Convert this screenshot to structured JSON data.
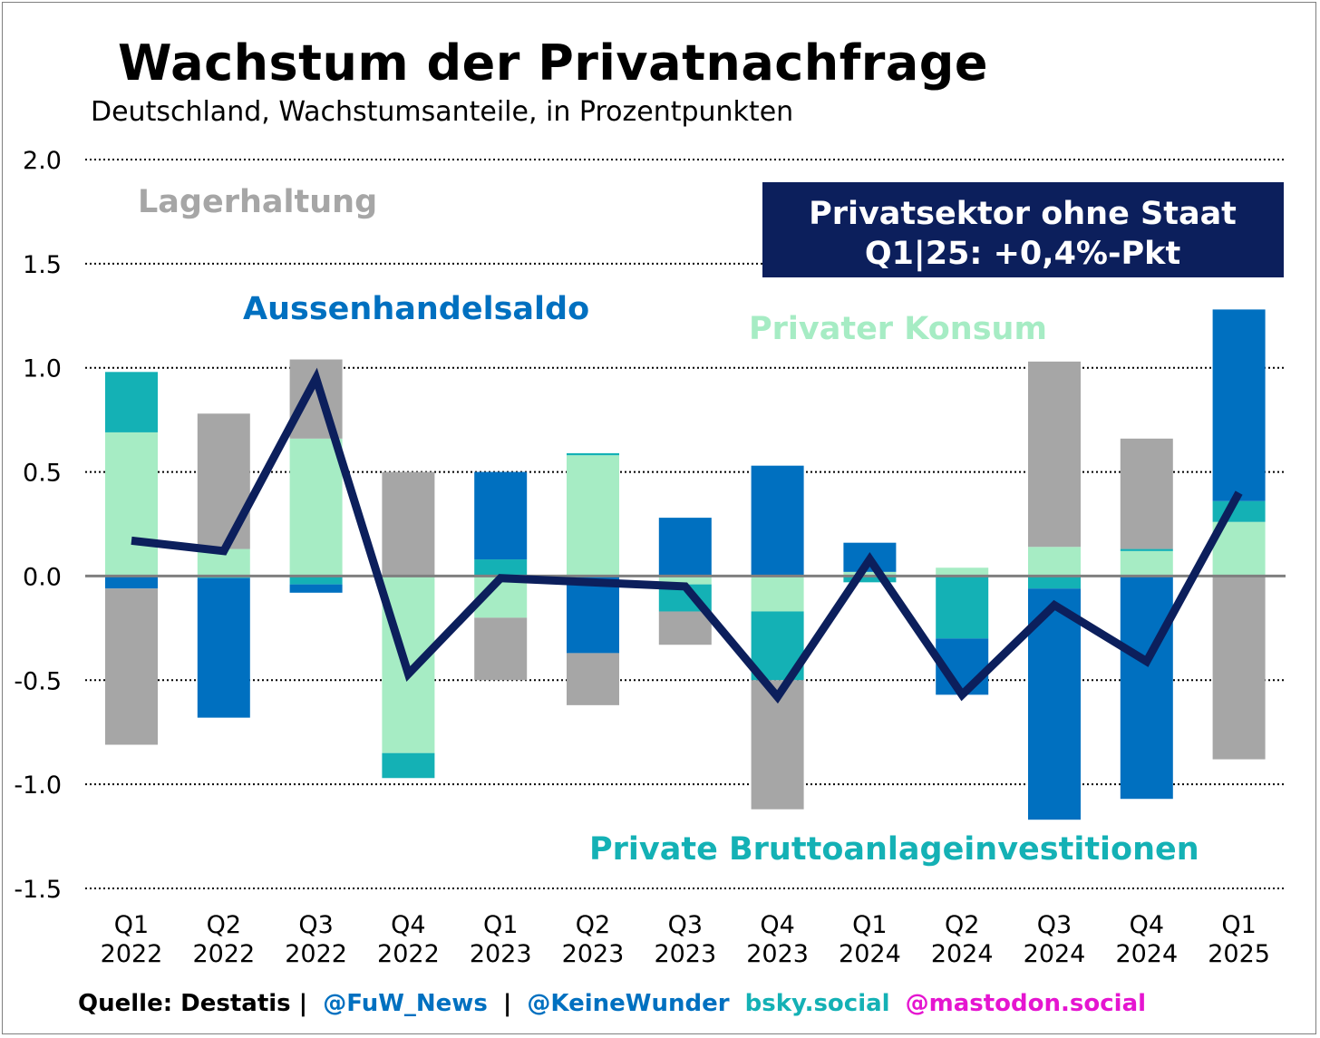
{
  "header": {
    "title": "Wachstum der Privatnachfrage",
    "subtitle": "Deutschland, Wachstumsanteile, in Prozentpunkten"
  },
  "chart_data": {
    "type": "bar",
    "stacked": true,
    "title": "Wachstum der Privatnachfrage",
    "subtitle": "Deutschland, Wachstumsanteile, in Prozentpunkten",
    "ylim": [
      -1.5,
      2.0
    ],
    "yticks": [
      2.0,
      1.5,
      1.0,
      0.5,
      0.0,
      -0.5,
      -1.0,
      -1.5
    ],
    "ytick_labels": [
      "2.0",
      "1.5",
      "1.0",
      "0.5",
      "0.0",
      "-0.5",
      "-1.0",
      "-1.5"
    ],
    "grid": "dotted horizontal",
    "categories": [
      [
        "Q1",
        "2022"
      ],
      [
        "Q2",
        "2022"
      ],
      [
        "Q3",
        "2022"
      ],
      [
        "Q4",
        "2022"
      ],
      [
        "Q1",
        "2023"
      ],
      [
        "Q2",
        "2023"
      ],
      [
        "Q3",
        "2023"
      ],
      [
        "Q4",
        "2023"
      ],
      [
        "Q1",
        "2024"
      ],
      [
        "Q2",
        "2024"
      ],
      [
        "Q3",
        "2024"
      ],
      [
        "Q4",
        "2024"
      ],
      [
        "Q1",
        "2025"
      ]
    ],
    "series": [
      {
        "name": "Privater Konsum",
        "color": "#a6ecc4",
        "values": [
          0.69,
          0.13,
          0.66,
          -0.85,
          -0.2,
          0.58,
          -0.04,
          -0.17,
          0.02,
          0.04,
          0.14,
          0.12,
          0.26
        ]
      },
      {
        "name": "Private Bruttoanlageinvestitionen",
        "color": "#14b1b5",
        "values": [
          0.29,
          -0.01,
          -0.04,
          -0.12,
          0.08,
          0.01,
          -0.13,
          -0.33,
          -0.03,
          -0.3,
          -0.06,
          0.01,
          0.1
        ]
      },
      {
        "name": "Aussenhandelsaldo",
        "color": "#0070c0",
        "values": [
          -0.06,
          -0.67,
          -0.04,
          0.0,
          0.42,
          -0.37,
          0.28,
          0.53,
          0.14,
          -0.27,
          -1.11,
          -1.07,
          0.92
        ]
      },
      {
        "name": "Lagerhaltung",
        "color": "#a6a6a6",
        "values": [
          -0.75,
          0.65,
          0.38,
          0.5,
          -0.3,
          -0.25,
          -0.16,
          -0.62,
          0.0,
          0.0,
          0.89,
          0.53,
          -0.88
        ]
      }
    ],
    "line": {
      "name": "Privatsektor ohne Staat",
      "color": "#0c1f5c",
      "values": [
        0.17,
        0.12,
        0.95,
        -0.47,
        -0.01,
        -0.03,
        -0.05,
        -0.58,
        0.08,
        -0.57,
        -0.14,
        -0.41,
        0.4
      ]
    },
    "annotations": {
      "lagerhaltung": "Lagerhaltung",
      "aussenhandelsaldo": "Aussenhandelsaldo",
      "privater_konsum": "Privater Konsum",
      "bruttoanlage": "Private Bruttoanlageinvestitionen",
      "callout_line1": "Privatsektor ohne Staat",
      "callout_line2": "Q1|25: +0,4%-Pkt"
    }
  },
  "colors": {
    "konsum": "#a6ecc4",
    "investitionen": "#14b1b5",
    "aussenhandel": "#0070c0",
    "lager": "#a6a6a6",
    "line": "#0c1f5c",
    "callout_bg": "#0c1f5c",
    "bsky": "#14b1b5",
    "mastodon": "#e515d0"
  },
  "footer": {
    "source": "Quelle: Destatis |",
    "fuw": "@FuW_News",
    "sep": "|",
    "keinewunder": "@KeineWunder",
    "bsky": "bsky.social",
    "mastodon": "@mastodon.social"
  }
}
